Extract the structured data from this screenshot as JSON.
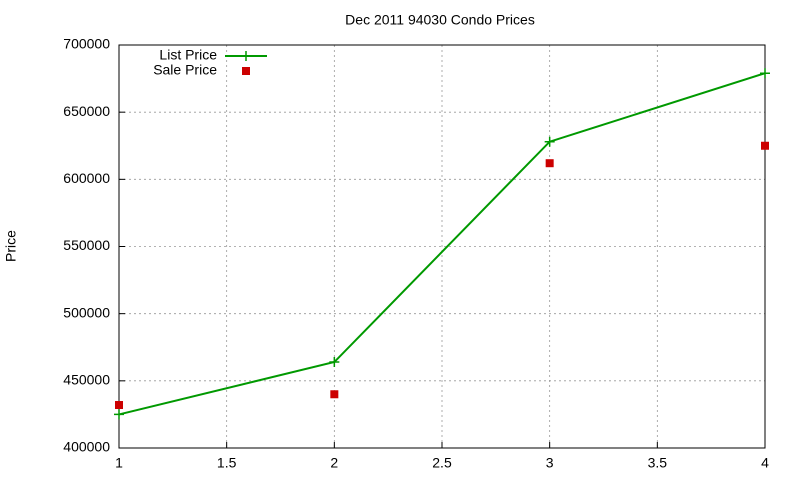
{
  "chart_data": {
    "type": "line",
    "title": "Dec 2011 94030 Condo Prices",
    "y_label": "Price",
    "x": [
      1,
      2,
      3,
      4
    ],
    "series": [
      {
        "name": "List Price",
        "color": "#009900",
        "type": "line",
        "values": [
          425000,
          464000,
          628000,
          679000
        ]
      },
      {
        "name": "Sale Price",
        "color": "#cc0000",
        "type": "scatter",
        "values": [
          432000,
          440000,
          612000,
          625000
        ]
      }
    ],
    "xlim": [
      1,
      4
    ],
    "xticks": [
      1,
      1.5,
      2,
      2.5,
      3,
      3.5,
      4
    ],
    "ylim": [
      400000,
      700000
    ],
    "yticks": [
      400000,
      450000,
      500000,
      550000,
      600000,
      650000,
      700000
    ],
    "grid": true,
    "legend": "top-left"
  }
}
